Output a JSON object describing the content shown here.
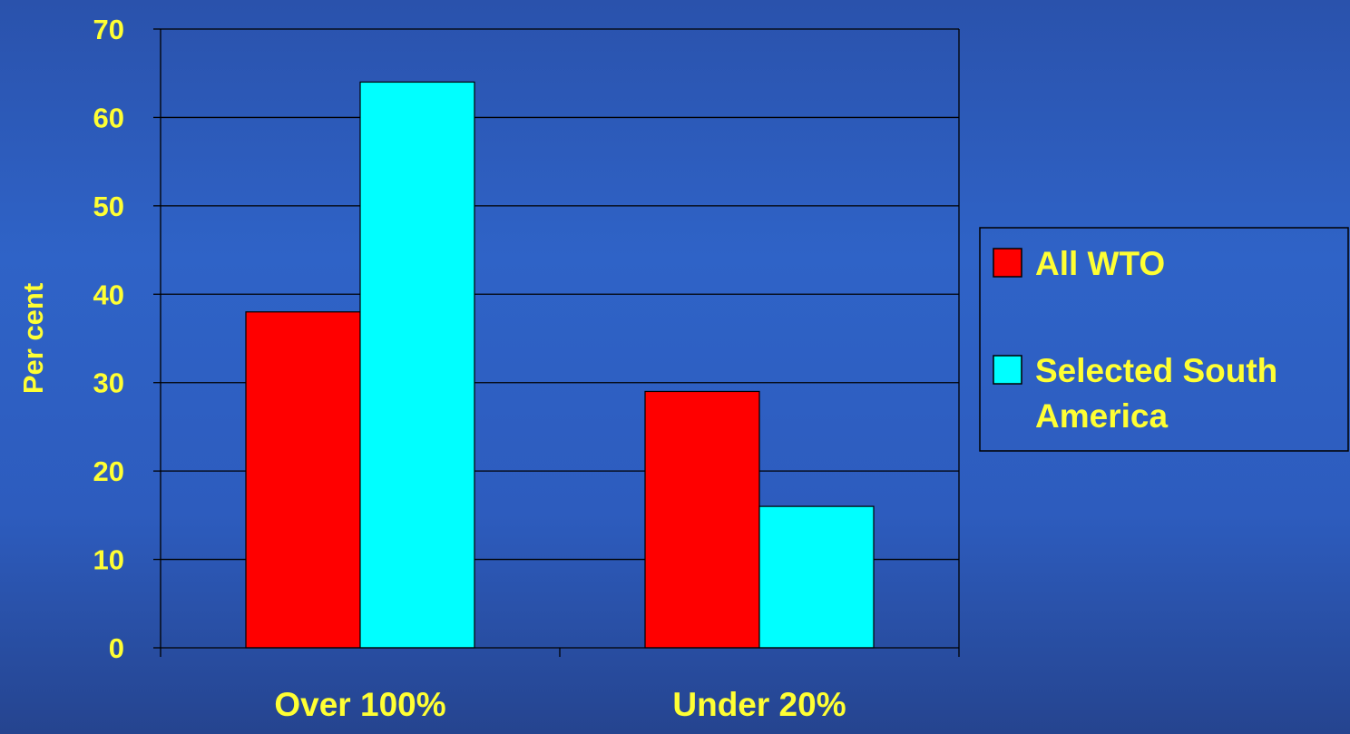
{
  "chart_data": {
    "type": "bar",
    "categories": [
      "Over 100%",
      "Under 20%"
    ],
    "series": [
      {
        "name": "All WTO",
        "values": [
          38,
          29
        ],
        "color": "#ff0000"
      },
      {
        "name": "Selected South America",
        "legend_lines": [
          "Selected South",
          "America"
        ],
        "values": [
          64,
          16
        ],
        "color": "#00ffff"
      }
    ],
    "title": "",
    "xlabel": "",
    "ylabel": "Per cent",
    "ylim": [
      0,
      70
    ],
    "yticks": [
      "0",
      "10",
      "20",
      "30",
      "40",
      "50",
      "60",
      "70"
    ],
    "grid": true,
    "legend_position": "right",
    "text_color": "#ffff33",
    "axis_color": "#000000"
  }
}
